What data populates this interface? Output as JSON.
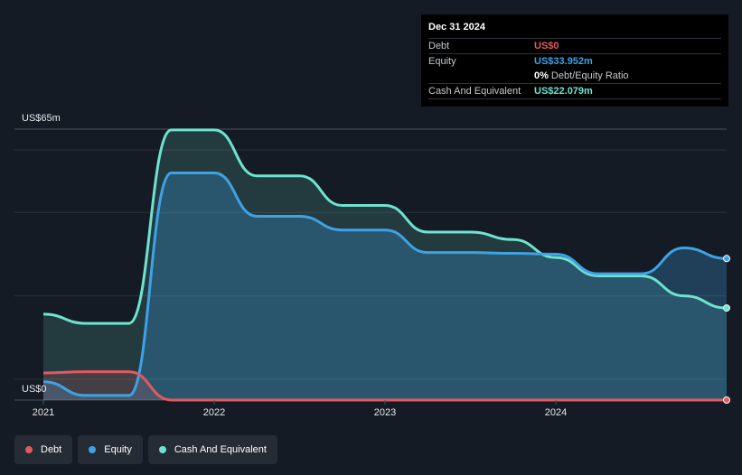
{
  "tooltip": {
    "date": "Dec 31 2024",
    "rows": [
      {
        "label": "Debt",
        "value": "US$0",
        "color": "#e05a5f"
      },
      {
        "label": "Equity",
        "value": "US$33.952m",
        "color": "#3ea2e6"
      },
      {
        "label": "",
        "value": "0%",
        "extra": "Debt/Equity Ratio",
        "color": "#ffffff"
      },
      {
        "label": "Cash And Equivalent",
        "value": "US$22.079m",
        "color": "#6ee3cf"
      }
    ]
  },
  "legend": [
    {
      "label": "Debt",
      "color": "#e05a5f"
    },
    {
      "label": "Equity",
      "color": "#3ea2e6"
    },
    {
      "label": "Cash And Equivalent",
      "color": "#6ee3cf"
    }
  ],
  "chart_data": {
    "type": "area",
    "y_top_label": "US$65m",
    "y_bottom_label": "US$0",
    "ylim": [
      0,
      65
    ],
    "xlim": [
      2021.0,
      2025.0
    ],
    "x_ticks": [
      {
        "value": 2021.0,
        "label": "2021"
      },
      {
        "value": 2022.0,
        "label": "2022"
      },
      {
        "value": 2023.0,
        "label": "2023"
      },
      {
        "value": 2024.0,
        "label": "2024"
      }
    ],
    "grid": true,
    "series": [
      {
        "name": "Debt",
        "color": "#e05a5f",
        "points": [
          [
            2021.0,
            6.5
          ],
          [
            2021.25,
            6.8
          ],
          [
            2021.5,
            6.8
          ],
          [
            2021.75,
            0
          ],
          [
            2022.0,
            0
          ],
          [
            2023.0,
            0
          ],
          [
            2024.0,
            0
          ],
          [
            2025.0,
            0
          ]
        ]
      },
      {
        "name": "Equity",
        "color": "#3ea2e6",
        "points": [
          [
            2021.0,
            4.4
          ],
          [
            2021.25,
            1.1
          ],
          [
            2021.5,
            1.1
          ],
          [
            2021.75,
            54.5
          ],
          [
            2022.0,
            54.5
          ],
          [
            2022.25,
            44.1
          ],
          [
            2022.5,
            44.1
          ],
          [
            2022.75,
            40.8
          ],
          [
            2023.0,
            40.8
          ],
          [
            2023.25,
            35.4
          ],
          [
            2023.5,
            35.4
          ],
          [
            2023.75,
            35.2
          ],
          [
            2024.0,
            35.0
          ],
          [
            2024.25,
            30.3
          ],
          [
            2024.5,
            30.3
          ],
          [
            2024.75,
            36.5
          ],
          [
            2025.0,
            33.952
          ]
        ]
      },
      {
        "name": "Cash And Equivalent",
        "color": "#6ee3cf",
        "points": [
          [
            2021.0,
            20.6
          ],
          [
            2021.25,
            18.4
          ],
          [
            2021.5,
            18.4
          ],
          [
            2021.75,
            64.8
          ],
          [
            2022.0,
            64.8
          ],
          [
            2022.25,
            53.8
          ],
          [
            2022.5,
            53.8
          ],
          [
            2022.75,
            46.7
          ],
          [
            2023.0,
            46.7
          ],
          [
            2023.25,
            40.3
          ],
          [
            2023.5,
            40.3
          ],
          [
            2023.75,
            38.5
          ],
          [
            2024.0,
            34.2
          ],
          [
            2024.25,
            29.8
          ],
          [
            2024.5,
            29.8
          ],
          [
            2024.75,
            25.0
          ],
          [
            2025.0,
            22.079
          ]
        ]
      }
    ]
  }
}
